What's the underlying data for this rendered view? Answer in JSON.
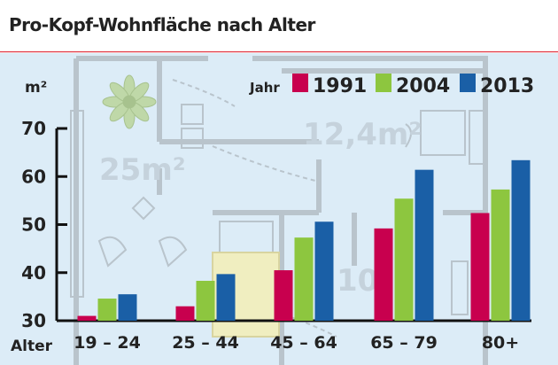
{
  "page": {
    "title": "Pro-Kopf-Wohnfläche nach Alter"
  },
  "chart_data": {
    "type": "bar",
    "title": "Pro-Kopf-Wohnfläche nach Alter",
    "ylabel": "m²",
    "xlabel": "Alter",
    "legend_title": "Jahr",
    "categories": [
      "19 – 24",
      "25 – 44",
      "45 – 64",
      "65 – 79",
      "80+"
    ],
    "series": [
      {
        "name": "1991",
        "color": "#c8004e",
        "values": [
          31,
          33,
          40.5,
          49.2,
          52.4
        ]
      },
      {
        "name": "2004",
        "color": "#8dc63f",
        "values": [
          34.6,
          38.3,
          47.3,
          55.4,
          57.3
        ]
      },
      {
        "name": "2013",
        "color": "#1a5fa6",
        "values": [
          35.5,
          39.7,
          50.6,
          61.4,
          63.4
        ]
      }
    ],
    "ylim": [
      30,
      70
    ],
    "yticks": [
      30,
      40,
      50,
      60,
      70
    ],
    "legend_position": "top-right",
    "background_labels": [
      "25m²",
      "12,4m²",
      "10,"
    ]
  },
  "colors": {
    "background": "#dcecf7",
    "accent_line": "#e0333f"
  }
}
